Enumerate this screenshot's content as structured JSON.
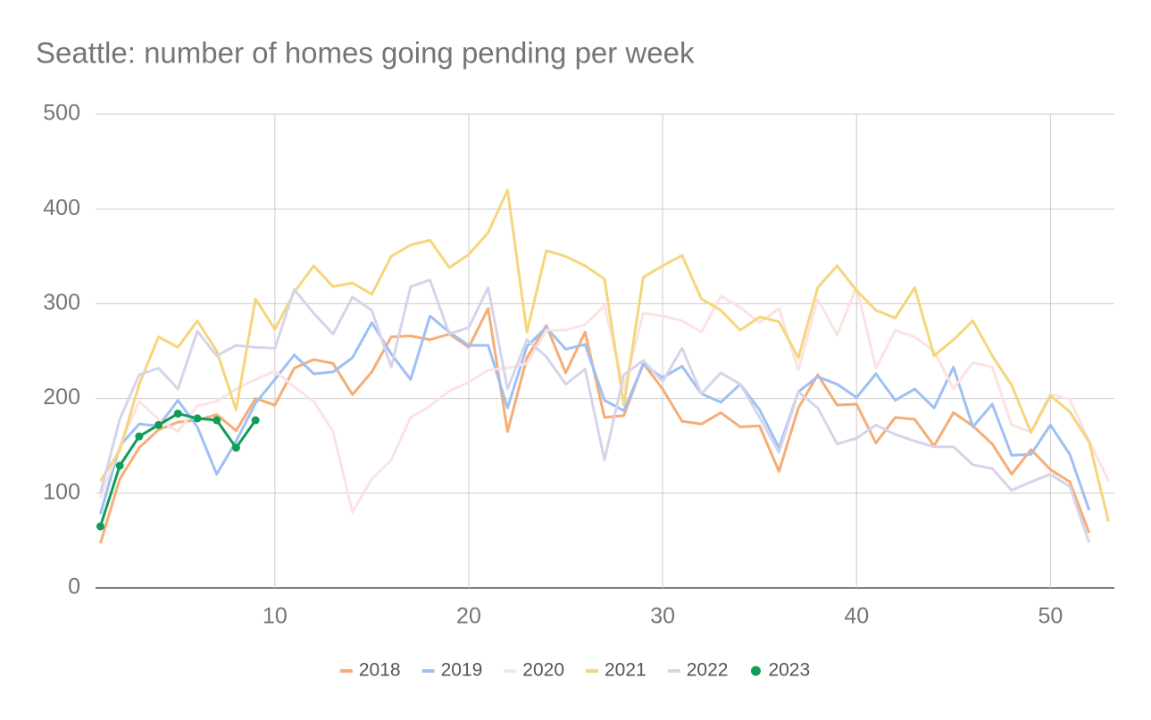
{
  "chart_data": {
    "type": "line",
    "title": "Seattle: number of homes going pending per week",
    "x": [
      1,
      2,
      3,
      4,
      5,
      6,
      7,
      8,
      9,
      10,
      11,
      12,
      13,
      14,
      15,
      16,
      17,
      18,
      19,
      20,
      21,
      22,
      23,
      24,
      25,
      26,
      27,
      28,
      29,
      30,
      31,
      32,
      33,
      34,
      35,
      36,
      37,
      38,
      39,
      40,
      41,
      42,
      43,
      44,
      45,
      46,
      47,
      48,
      49,
      50,
      51,
      52,
      53
    ],
    "xlim": [
      0.75,
      53.3
    ],
    "xticks": [
      10,
      20,
      30,
      40,
      50
    ],
    "ylim": [
      0,
      500
    ],
    "yticks": [
      0,
      100,
      200,
      300,
      400,
      500
    ],
    "grid": true,
    "legend": "bottom",
    "series": [
      {
        "name": "2018",
        "color": "#f6ad76",
        "values": [
          47,
          115,
          148,
          167,
          175,
          177,
          183,
          166,
          200,
          193,
          232,
          241,
          237,
          204,
          228,
          265,
          266,
          262,
          268,
          254,
          295,
          165,
          243,
          277,
          227,
          270,
          180,
          182,
          237,
          210,
          176,
          173,
          185,
          170,
          171,
          123,
          190,
          225,
          193,
          194,
          153,
          180,
          178,
          150,
          185,
          171,
          152,
          120,
          146,
          125,
          112,
          58,
          null
        ]
      },
      {
        "name": "2019",
        "color": "#9fc0f4",
        "values": [
          78,
          150,
          173,
          171,
          198,
          170,
          120,
          155,
          195,
          220,
          246,
          226,
          228,
          243,
          280,
          247,
          220,
          287,
          270,
          256,
          256,
          190,
          255,
          275,
          252,
          257,
          198,
          187,
          236,
          222,
          234,
          205,
          196,
          215,
          188,
          148,
          207,
          223,
          215,
          201,
          226,
          198,
          210,
          190,
          233,
          170,
          194,
          140,
          141,
          172,
          141,
          82,
          null
        ]
      },
      {
        "name": "2020",
        "color": "#fce3e3",
        "values": [
          95,
          150,
          197,
          178,
          165,
          192,
          197,
          210,
          220,
          229,
          212,
          197,
          165,
          80,
          115,
          135,
          180,
          192,
          208,
          217,
          230,
          232,
          237,
          272,
          272,
          278,
          298,
          210,
          290,
          287,
          282,
          270,
          308,
          296,
          280,
          295,
          230,
          305,
          267,
          318,
          232,
          272,
          265,
          250,
          210,
          238,
          233,
          172,
          165,
          205,
          199,
          155,
          113
        ]
      },
      {
        "name": "2021",
        "color": "#f5d67c",
        "values": [
          113,
          145,
          215,
          265,
          254,
          282,
          250,
          188,
          305,
          273,
          312,
          340,
          318,
          322,
          310,
          350,
          362,
          367,
          338,
          352,
          375,
          420,
          270,
          356,
          350,
          340,
          326,
          193,
          328,
          340,
          351,
          305,
          293,
          272,
          286,
          281,
          243,
          317,
          340,
          314,
          293,
          285,
          317,
          245,
          262,
          282,
          245,
          214,
          164,
          203,
          186,
          154,
          70
        ]
      },
      {
        "name": "2022",
        "color": "#d6d4ea",
        "values": [
          100,
          178,
          225,
          232,
          210,
          271,
          245,
          256,
          254,
          253,
          315,
          290,
          268,
          307,
          293,
          233,
          318,
          325,
          268,
          275,
          317,
          210,
          262,
          244,
          215,
          231,
          135,
          225,
          240,
          218,
          253,
          205,
          227,
          215,
          180,
          143,
          207,
          190,
          152,
          158,
          172,
          162,
          155,
          149,
          149,
          130,
          126,
          103,
          112,
          120,
          107,
          48,
          null
        ]
      },
      {
        "name": "2023",
        "color": "#0f9d58",
        "marker": true,
        "values": [
          65,
          129,
          160,
          172,
          184,
          179,
          177,
          148,
          177,
          null,
          null,
          null,
          null,
          null,
          null,
          null,
          null,
          null,
          null,
          null,
          null,
          null,
          null,
          null,
          null,
          null,
          null,
          null,
          null,
          null,
          null,
          null,
          null,
          null,
          null,
          null,
          null,
          null,
          null,
          null,
          null,
          null,
          null,
          null,
          null,
          null,
          null,
          null,
          null,
          null,
          null,
          null,
          null
        ]
      }
    ]
  }
}
